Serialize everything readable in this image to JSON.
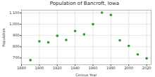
{
  "chart_data": {
    "type": "scatter",
    "title": "Population of Bancroft, Iowa",
    "x_label": "Census Year",
    "y_label": "Population",
    "x": [
      1890,
      1900,
      1910,
      1920,
      1930,
      1940,
      1950,
      1960,
      1970,
      1980,
      1990,
      2000,
      2010,
      2020
    ],
    "values": [
      681,
      848,
      839,
      897,
      860,
      940,
      910,
      1000,
      1103,
      1082,
      857,
      808,
      732,
      697
    ],
    "color": "#2e9a2e",
    "marker": "circle",
    "xlim": [
      1880,
      2025
    ],
    "xticks": [
      1880,
      1900,
      1920,
      1940,
      1960,
      1980,
      2000,
      2020
    ],
    "ylim": [
      640,
      1125
    ],
    "yticks": [
      700,
      800,
      900,
      {
        "value": 1000,
        "label": "1,000"
      },
      {
        "value": 1100,
        "label": "1,100"
      }
    ],
    "grid": true
  }
}
